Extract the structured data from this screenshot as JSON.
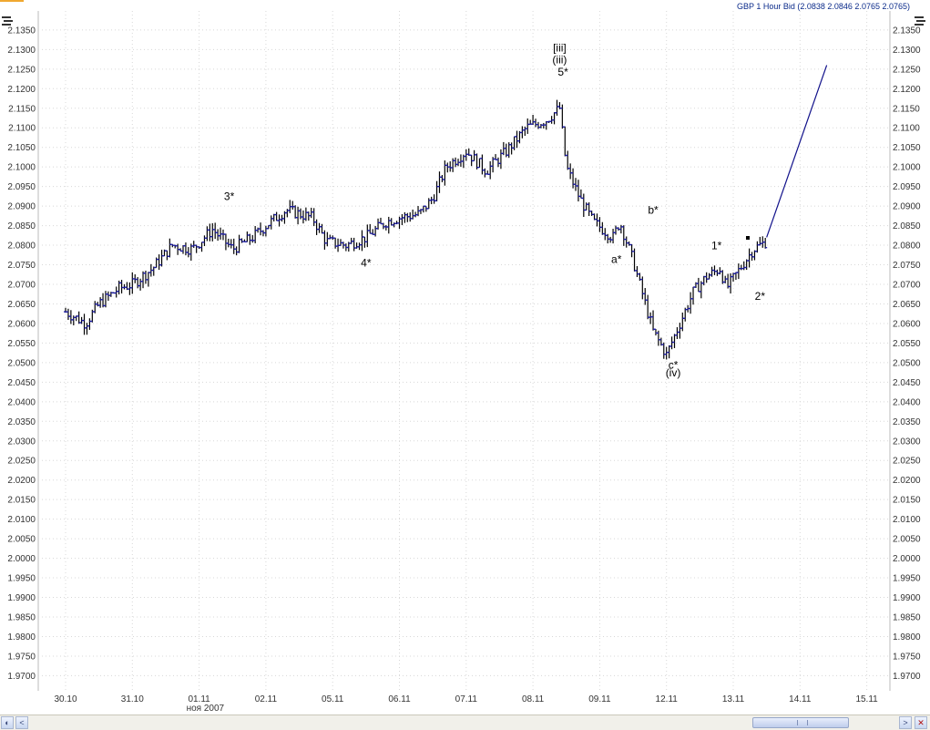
{
  "window": {
    "title": "GBP 1 Hour Bid (2.0838 2.0846 2.0765 2.0765)"
  },
  "chart_data": {
    "type": "ohlc",
    "instrument": "GBP",
    "timeframe": "1 Hour",
    "y_ticks": [
      2.135,
      2.13,
      2.125,
      2.12,
      2.115,
      2.11,
      2.105,
      2.1,
      2.095,
      2.09,
      2.085,
      2.08,
      2.075,
      2.07,
      2.065,
      2.06,
      2.055,
      2.05,
      2.045,
      2.04,
      2.035,
      2.03,
      2.025,
      2.02,
      2.015,
      2.01,
      2.005,
      2.0,
      1.995,
      1.99,
      1.985,
      1.98,
      1.975,
      1.97
    ],
    "ylim": [
      1.968,
      2.138
    ],
    "x_labels": [
      "30.10",
      "31.10",
      "01.11",
      "02.11",
      "05.11",
      "06.11",
      "07.11",
      "08.11",
      "09.11",
      "12.11",
      "13.11",
      "14.11",
      "15.11"
    ],
    "x_sublabel": "ноя 2007",
    "price_path": [
      [
        0,
        2.063
      ],
      [
        0.3,
        2.06
      ],
      [
        0.5,
        2.065
      ],
      [
        0.8,
        2.069
      ],
      [
        1.0,
        2.07
      ],
      [
        1.3,
        2.074
      ],
      [
        1.6,
        2.08
      ],
      [
        1.9,
        2.079
      ],
      [
        2.2,
        2.084
      ],
      [
        2.5,
        2.079
      ],
      [
        2.8,
        2.082
      ],
      [
        3.0,
        2.085
      ],
      [
        3.3,
        2.089
      ],
      [
        3.7,
        2.087
      ],
      [
        3.9,
        2.081
      ],
      [
        4.2,
        2.08
      ],
      [
        4.5,
        2.082
      ],
      [
        4.8,
        2.086
      ],
      [
        5.0,
        2.087
      ],
      [
        5.3,
        2.088
      ],
      [
        5.5,
        2.092
      ],
      [
        5.7,
        2.1
      ],
      [
        6.0,
        2.104
      ],
      [
        6.3,
        2.099
      ],
      [
        6.6,
        2.104
      ],
      [
        6.9,
        2.11
      ],
      [
        7.2,
        2.112
      ],
      [
        7.4,
        2.115
      ],
      [
        7.5,
        2.1
      ],
      [
        7.7,
        2.092
      ],
      [
        7.9,
        2.086
      ],
      [
        8.2,
        2.082
      ],
      [
        8.3,
        2.086
      ],
      [
        8.5,
        2.076
      ],
      [
        8.8,
        2.058
      ],
      [
        9.0,
        2.052
      ],
      [
        9.2,
        2.06
      ],
      [
        9.4,
        2.068
      ],
      [
        9.6,
        2.072
      ],
      [
        9.8,
        2.074
      ],
      [
        9.9,
        2.069
      ],
      [
        10.1,
        2.074
      ],
      [
        10.3,
        2.079
      ],
      [
        10.5,
        2.081
      ]
    ],
    "trend_line": {
      "from": [
        10.5,
        2.082
      ],
      "to": [
        11.4,
        2.126
      ]
    },
    "annotations": [
      {
        "text": "[iii]",
        "x": 7.4,
        "y": 2.1295
      },
      {
        "text": "(iii)",
        "x": 7.4,
        "y": 2.1265
      },
      {
        "text": "5*",
        "x": 7.45,
        "y": 2.1233
      },
      {
        "text": "3*",
        "x": 2.45,
        "y": 2.0915
      },
      {
        "text": "4*",
        "x": 4.5,
        "y": 2.0745
      },
      {
        "text": "a*",
        "x": 8.25,
        "y": 2.0755
      },
      {
        "text": "b*",
        "x": 8.8,
        "y": 2.088
      },
      {
        "text": "1*",
        "x": 9.75,
        "y": 2.079
      },
      {
        "text": "2*",
        "x": 10.4,
        "y": 2.066
      },
      {
        "text": "c*",
        "x": 9.1,
        "y": 2.0485
      },
      {
        "text": "(iv)",
        "x": 9.1,
        "y": 2.0465
      }
    ],
    "colors": {
      "bars": "#1a1aa8",
      "wicks": "#000000",
      "grid": "#d8d8d8",
      "trend": "#10108a"
    }
  }
}
